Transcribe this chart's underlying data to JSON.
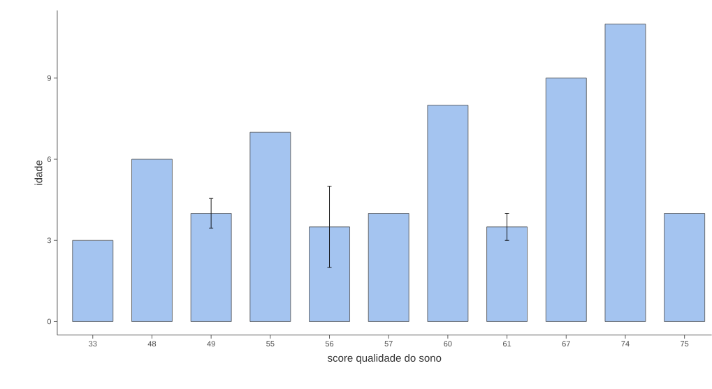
{
  "chart_data": {
    "type": "bar",
    "xlabel": "score qualidade do sono",
    "ylabel": "idade",
    "categories": [
      "33",
      "48",
      "49",
      "55",
      "56",
      "57",
      "60",
      "61",
      "67",
      "74",
      "75"
    ],
    "values": [
      3,
      6,
      4,
      7,
      3.5,
      4,
      8,
      3.5,
      9,
      11,
      4
    ],
    "errors": [
      null,
      null,
      0.55,
      null,
      1.5,
      null,
      null,
      0.5,
      null,
      null,
      null
    ],
    "color": "#a4c4f0",
    "ylim": [
      -0.5,
      11.5
    ],
    "yticks": [
      0,
      3,
      6,
      9
    ],
    "grid": false
  }
}
